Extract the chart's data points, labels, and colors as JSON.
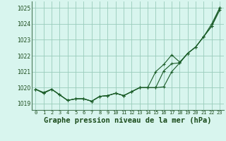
{
  "background_color": "#cceee4",
  "plot_bg": "#d8f5ee",
  "grid_color": "#99ccbb",
  "line_color": "#1a5c28",
  "xlabel": "Graphe pression niveau de la mer (hPa)",
  "xlabel_fontsize": 7.5,
  "ylim": [
    1018.6,
    1025.4
  ],
  "yticks": [
    1019,
    1020,
    1021,
    1022,
    1023,
    1024,
    1025
  ],
  "xlim": [
    -0.5,
    23.5
  ],
  "xticks": [
    0,
    1,
    2,
    3,
    4,
    5,
    6,
    7,
    8,
    9,
    10,
    11,
    12,
    13,
    14,
    15,
    16,
    17,
    18,
    19,
    20,
    21,
    22,
    23
  ],
  "series1": [
    1019.9,
    1019.7,
    1019.9,
    1019.55,
    1019.2,
    1019.3,
    1019.3,
    1019.15,
    1019.45,
    1019.5,
    1019.65,
    1019.5,
    1019.75,
    1020.0,
    1020.0,
    1020.0,
    1021.05,
    1021.5,
    1021.55,
    1022.15,
    1022.55,
    1023.2,
    1023.85,
    1024.85
  ],
  "series2": [
    1019.9,
    1019.65,
    1019.9,
    1019.55,
    1019.2,
    1019.3,
    1019.3,
    1019.15,
    1019.45,
    1019.5,
    1019.65,
    1019.5,
    1019.75,
    1020.0,
    1020.0,
    1021.0,
    1021.45,
    1022.05,
    1021.6,
    1022.15,
    1022.55,
    1023.2,
    1023.85,
    1025.0
  ],
  "series3": [
    1019.9,
    1019.65,
    1019.9,
    1019.55,
    1019.2,
    1019.3,
    1019.3,
    1019.15,
    1019.45,
    1019.5,
    1019.65,
    1019.5,
    1019.75,
    1020.0,
    1020.0,
    1020.0,
    1020.05,
    1021.0,
    1021.55,
    1022.15,
    1022.55,
    1023.2,
    1024.0,
    1025.0
  ]
}
